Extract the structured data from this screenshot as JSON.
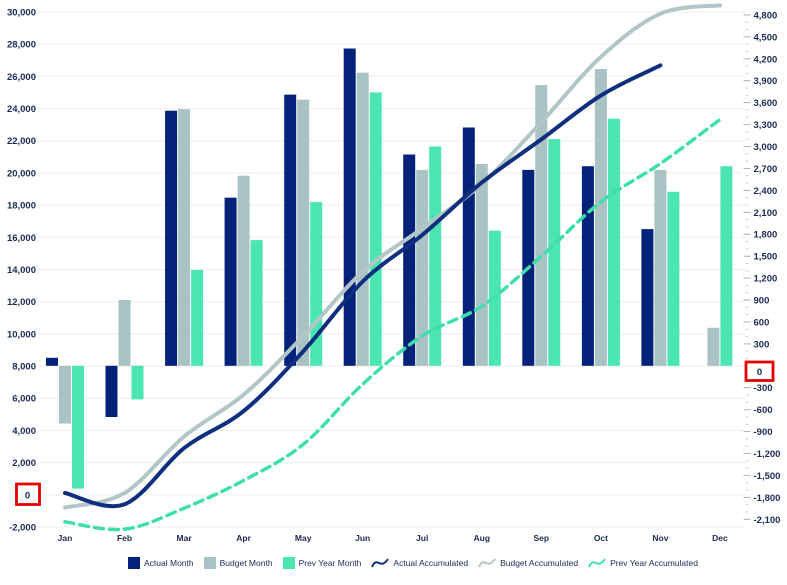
{
  "chart_data": {
    "type": "combo-bar-line",
    "title": "",
    "months": [
      "Jan",
      "Feb",
      "Mar",
      "Apr",
      "May",
      "Jun",
      "Jul",
      "Aug",
      "Sep",
      "Oct",
      "Nov",
      "Dec"
    ],
    "monthly_series": [
      {
        "name": "Actual Month",
        "color": "#05227b",
        "values": [
          110,
          -700,
          3490,
          2300,
          3710,
          4340,
          2890,
          3260,
          2680,
          2730,
          1870,
          null
        ]
      },
      {
        "name": "Budget Month",
        "color": "#a9c2c4",
        "values": [
          -790,
          900,
          3510,
          2600,
          3640,
          4010,
          2680,
          2760,
          3840,
          4060,
          2680,
          520
        ]
      },
      {
        "name": "Prev Year Month",
        "color": "#4be5b2",
        "values": [
          -1680,
          -460,
          1310,
          1720,
          2240,
          3740,
          3000,
          1850,
          3100,
          3380,
          2380,
          2730
        ]
      }
    ],
    "accumulated_series": [
      {
        "name": "Actual Accumulated",
        "color": "#0d2f7e",
        "style": "solid",
        "values": [
          110,
          -590,
          2900,
          5200,
          8910,
          13250,
          16140,
          19400,
          22080,
          24810,
          26680,
          null
        ]
      },
      {
        "name": "Budget Accumulated",
        "color": "#b2c6c8",
        "style": "solid",
        "values": [
          -790,
          110,
          3620,
          6220,
          9860,
          13870,
          16550,
          19310,
          23150,
          27210,
          29890,
          30410
        ]
      },
      {
        "name": "Prev Year Accumulated",
        "color": "#3fdfab",
        "style": "dashed",
        "values": [
          -1680,
          -2140,
          -830,
          890,
          3130,
          6870,
          9870,
          11720,
          14820,
          18200,
          20580,
          23310
        ]
      }
    ],
    "left_axis": {
      "min": -2000,
      "max": 30000,
      "step": 2000,
      "tick_labels": [
        "30,000",
        "28,000",
        "26,000",
        "24,000",
        "22,000",
        "20,000",
        "18,000",
        "16,000",
        "14,000",
        "12,000",
        "10,000",
        "8,000",
        "6,000",
        "4,000",
        "2,000",
        "0",
        "-2,000"
      ],
      "zero_label": "0",
      "zero_highlighted": true
    },
    "right_axis": {
      "min": -2100,
      "max": 4800,
      "step": 300,
      "minor_step": 100,
      "tick_labels": [
        "4,800",
        "4,500",
        "4,200",
        "3,900",
        "3,600",
        "3,300",
        "3,000",
        "2,700",
        "2,400",
        "2,100",
        "1,800",
        "1,500",
        "1,200",
        "900",
        "600",
        "300",
        "0",
        "-300",
        "-600",
        "-900",
        "-1,200",
        "-1,500",
        "-1,800",
        "-2,100"
      ],
      "zero_label": "0",
      "zero_highlighted": true
    },
    "grid": true,
    "legend_position": "bottom",
    "colors": {
      "gridline": "#ededed",
      "axis_text": "#1b2a55",
      "major_tick": "#a9b0bb",
      "minor_tick": "#ccd1d8",
      "zero_box": "#e60000",
      "background": "#ffffff"
    }
  },
  "legend": {
    "items": [
      {
        "label": "Actual Month",
        "icon": "square",
        "color": "#05227b"
      },
      {
        "label": "Budget Month",
        "icon": "square",
        "color": "#a9c2c4"
      },
      {
        "label": "Prev Year Month",
        "icon": "square",
        "color": "#4be5b2"
      },
      {
        "label": "Actual Accumulated",
        "icon": "curve",
        "color": "#0d2f7e"
      },
      {
        "label": "Budget Accumulated",
        "icon": "curve",
        "color": "#b2c6c8"
      },
      {
        "label": "Prev Year Accumulated",
        "icon": "curve",
        "color": "#3fdfab"
      }
    ]
  },
  "annotations": {
    "left_zero_label": "0",
    "right_zero_label": "0"
  }
}
